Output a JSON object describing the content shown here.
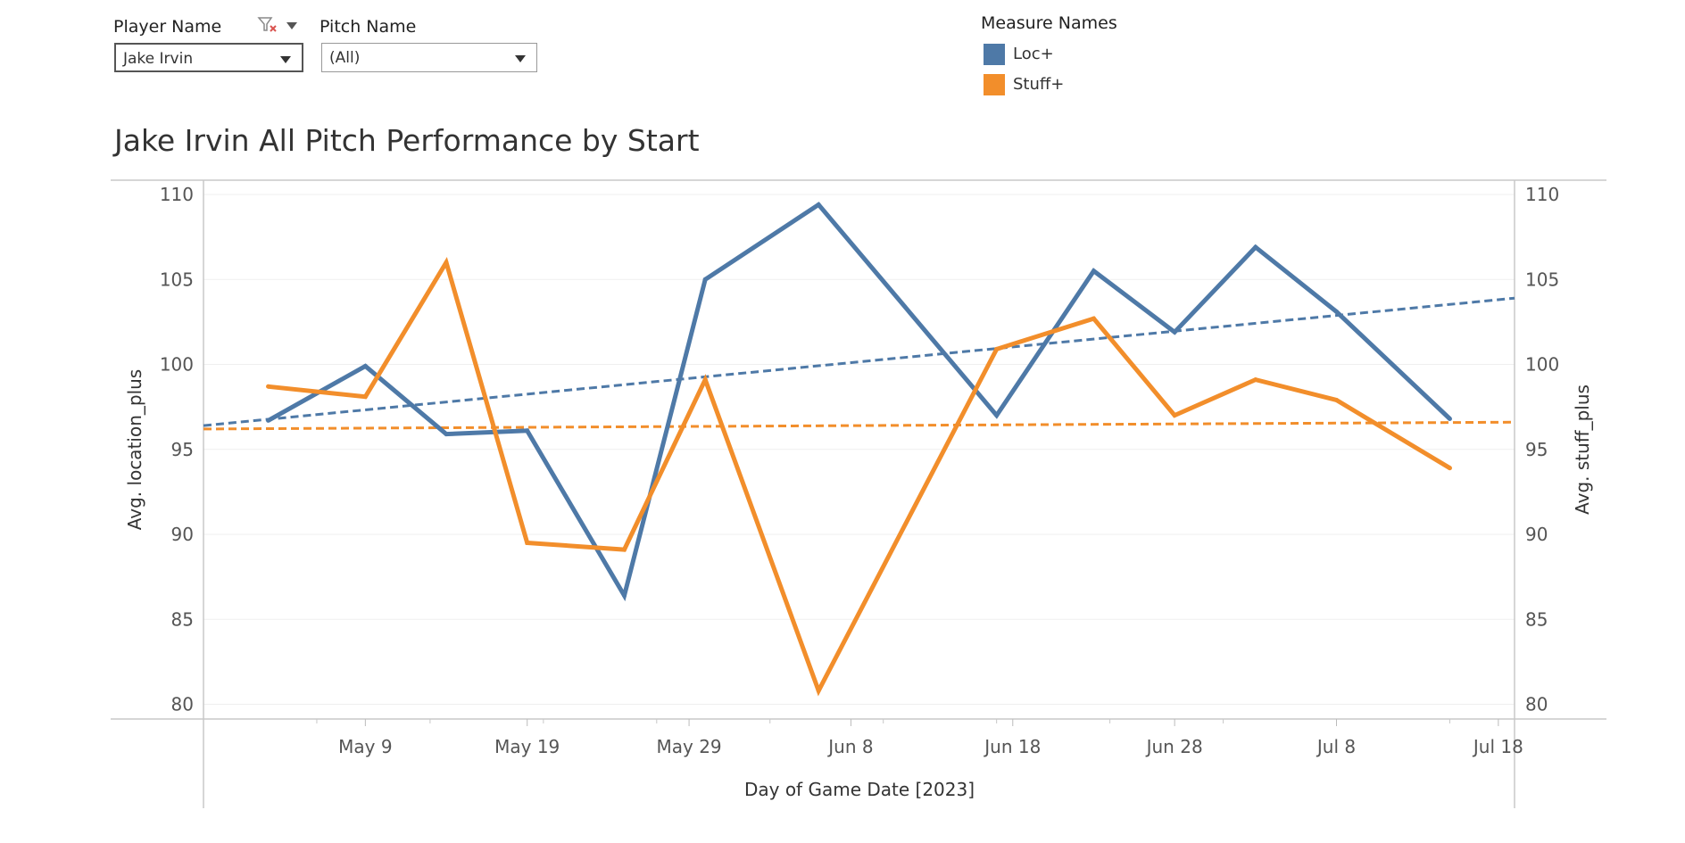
{
  "filters": {
    "player": {
      "label": "Player Name",
      "value": "Jake Irvin"
    },
    "pitch": {
      "label": "Pitch Name",
      "value": "(All)"
    }
  },
  "legend": {
    "title": "Measure Names",
    "items": [
      {
        "label": "Loc+",
        "color": "#4E79A7"
      },
      {
        "label": "Stuff+",
        "color": "#F28E2B"
      }
    ]
  },
  "chart_data": {
    "type": "line",
    "title": "Jake Irvin All Pitch Performance by Start",
    "xlabel": "Day of Game Date [2023]",
    "ylabel": "Avg. location_plus",
    "y2label": "Avg. stuff_plus",
    "ylim": [
      80,
      110
    ],
    "y2lim": [
      80,
      110
    ],
    "yticks": [
      80,
      85,
      90,
      95,
      100,
      105,
      110
    ],
    "y2ticks": [
      80,
      85,
      90,
      95,
      100,
      105,
      110
    ],
    "xlim": [
      "2023-04-29",
      "2023-07-19"
    ],
    "xticks": [
      {
        "date": "2023-05-09",
        "label": "May 9"
      },
      {
        "date": "2023-05-19",
        "label": "May 19"
      },
      {
        "date": "2023-05-29",
        "label": "May 29"
      },
      {
        "date": "2023-06-08",
        "label": "Jun 8"
      },
      {
        "date": "2023-06-18",
        "label": "Jun 18"
      },
      {
        "date": "2023-06-28",
        "label": "Jun 28"
      },
      {
        "date": "2023-07-08",
        "label": "Jul 8"
      },
      {
        "date": "2023-07-18",
        "label": "Jul 18"
      }
    ],
    "grid": true,
    "series": [
      {
        "name": "Loc+",
        "color": "#4E79A7",
        "points": [
          {
            "x": "2023-05-03",
            "y": 96.7
          },
          {
            "x": "2023-05-09",
            "y": 99.9
          },
          {
            "x": "2023-05-14",
            "y": 95.9
          },
          {
            "x": "2023-05-19",
            "y": 96.1
          },
          {
            "x": "2023-05-25",
            "y": 86.4
          },
          {
            "x": "2023-05-30",
            "y": 105.0
          },
          {
            "x": "2023-06-06",
            "y": 109.4
          },
          {
            "x": "2023-06-17",
            "y": 97.0
          },
          {
            "x": "2023-06-23",
            "y": 105.5
          },
          {
            "x": "2023-06-28",
            "y": 101.9
          },
          {
            "x": "2023-07-03",
            "y": 106.9
          },
          {
            "x": "2023-07-08",
            "y": 103.1
          },
          {
            "x": "2023-07-15",
            "y": 96.8
          }
        ],
        "trend": {
          "start": {
            "x": "2023-04-29",
            "y": 96.4
          },
          "end": {
            "x": "2023-07-19",
            "y": 103.9
          }
        }
      },
      {
        "name": "Stuff+",
        "color": "#F28E2B",
        "points": [
          {
            "x": "2023-05-03",
            "y": 98.7
          },
          {
            "x": "2023-05-09",
            "y": 98.1
          },
          {
            "x": "2023-05-14",
            "y": 106.0
          },
          {
            "x": "2023-05-19",
            "y": 89.5
          },
          {
            "x": "2023-05-25",
            "y": 89.1
          },
          {
            "x": "2023-05-30",
            "y": 99.1
          },
          {
            "x": "2023-06-06",
            "y": 80.8
          },
          {
            "x": "2023-06-17",
            "y": 100.9
          },
          {
            "x": "2023-06-23",
            "y": 102.7
          },
          {
            "x": "2023-06-28",
            "y": 97.0
          },
          {
            "x": "2023-07-03",
            "y": 99.1
          },
          {
            "x": "2023-07-08",
            "y": 97.9
          },
          {
            "x": "2023-07-15",
            "y": 93.9
          }
        ],
        "trend": {
          "start": {
            "x": "2023-04-29",
            "y": 96.2
          },
          "end": {
            "x": "2023-07-19",
            "y": 96.6
          }
        }
      }
    ]
  }
}
